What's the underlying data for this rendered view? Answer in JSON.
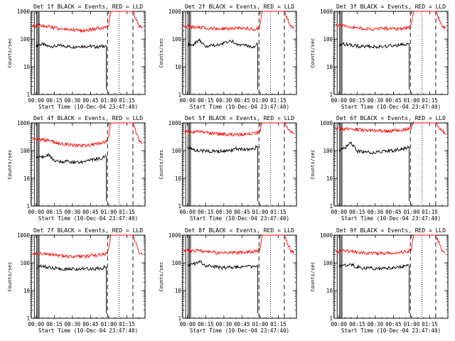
{
  "figure": {
    "xlabel": "Start Time (10-Dec-04 23:47:40)",
    "ylabel": "Counts/sec",
    "x_tick_labels": [
      "00:00",
      "00:15",
      "00:30",
      "00:45",
      "01:00",
      "01:15"
    ],
    "y_tick_labels": [
      "1",
      "10",
      "100",
      "1000"
    ],
    "colors": {
      "events": "#000000",
      "lld": "#ff0000",
      "axes": "#000000",
      "background": "#ffffff"
    }
  },
  "chart_data": [
    {
      "type": "line",
      "title": "Det 1f BLACK = Events, RED = LLD",
      "xlabel": "Start Time (10-Dec-04 23:47:40)",
      "ylabel": "Counts/sec",
      "y_scale": "log",
      "ylim": [
        1,
        1000
      ],
      "xlim": [
        -4,
        90
      ],
      "x_unit": "minutes after 00:00",
      "series": [
        {
          "name": "Events",
          "color": "#000000",
          "x": [
            -3,
            0,
            5,
            10,
            15,
            20,
            25,
            30,
            35,
            40,
            45,
            50,
            55,
            58,
            60
          ],
          "y": [
            null,
            60,
            65,
            55,
            55,
            58,
            55,
            52,
            55,
            55,
            55,
            52,
            55,
            60,
            null
          ]
        },
        {
          "name": "LLD",
          "color": "#ff0000",
          "x": [
            -3,
            0,
            5,
            10,
            15,
            20,
            25,
            30,
            35,
            40,
            45,
            50,
            55,
            58,
            60,
            61,
            62,
            65,
            70,
            75,
            80,
            85,
            88
          ],
          "y": [
            290,
            300,
            300,
            290,
            250,
            240,
            220,
            210,
            200,
            200,
            220,
            240,
            250,
            270,
            330,
            700,
            1000,
            1000,
            1000,
            1000,
            1000,
            300,
            250
          ]
        }
      ]
    },
    {
      "type": "line",
      "title": "Det 2f BLACK = Events, RED = LLD",
      "xlabel": "Start Time (10-Dec-04 23:47:40)",
      "ylabel": "Counts/sec",
      "y_scale": "log",
      "ylim": [
        1,
        1000
      ],
      "xlim": [
        -4,
        90
      ],
      "x_unit": "minutes after 00:00",
      "series": [
        {
          "name": "Events",
          "color": "#000000",
          "x": [
            -3,
            0,
            5,
            10,
            15,
            20,
            25,
            30,
            35,
            40,
            45,
            50,
            55,
            58,
            60
          ],
          "y": [
            null,
            60,
            65,
            90,
            55,
            58,
            60,
            70,
            90,
            70,
            60,
            55,
            55,
            70,
            null
          ]
        },
        {
          "name": "LLD",
          "color": "#ff0000",
          "x": [
            -3,
            0,
            5,
            10,
            15,
            20,
            25,
            30,
            35,
            40,
            45,
            50,
            55,
            58,
            60,
            61,
            62,
            65,
            70,
            75,
            80,
            85,
            88
          ],
          "y": [
            300,
            280,
            270,
            260,
            250,
            240,
            230,
            230,
            240,
            250,
            250,
            240,
            230,
            240,
            330,
            700,
            1000,
            1000,
            1000,
            1000,
            1000,
            300,
            230
          ]
        }
      ]
    },
    {
      "type": "line",
      "title": "Det 3f BLACK = Events, RED = LLD",
      "xlabel": "Start Time (10-Dec-04 23:47:40)",
      "ylabel": "Counts/sec",
      "y_scale": "log",
      "ylim": [
        1,
        1000
      ],
      "xlim": [
        -4,
        90
      ],
      "x_unit": "minutes after 00:00",
      "series": [
        {
          "name": "Events",
          "color": "#000000",
          "x": [
            -3,
            0,
            5,
            10,
            15,
            20,
            25,
            30,
            35,
            40,
            45,
            50,
            55,
            58,
            60
          ],
          "y": [
            null,
            60,
            65,
            60,
            55,
            55,
            55,
            52,
            55,
            55,
            58,
            60,
            65,
            70,
            null
          ]
        },
        {
          "name": "LLD",
          "color": "#ff0000",
          "x": [
            -3,
            0,
            5,
            10,
            15,
            20,
            25,
            30,
            35,
            40,
            45,
            50,
            55,
            58,
            60,
            61,
            62,
            65,
            70,
            75,
            80,
            85,
            88
          ],
          "y": [
            320,
            310,
            300,
            280,
            250,
            240,
            230,
            230,
            240,
            240,
            240,
            230,
            240,
            260,
            340,
            700,
            1000,
            1000,
            1000,
            1000,
            1000,
            300,
            250
          ]
        }
      ]
    },
    {
      "type": "line",
      "title": "Det 4f BLACK = Events, RED = LLD",
      "xlabel": "Start Time (10-Dec-04 23:47:40)",
      "ylabel": "Counts/sec",
      "y_scale": "log",
      "ylim": [
        1,
        1000
      ],
      "xlim": [
        -4,
        90
      ],
      "x_unit": "minutes after 00:00",
      "series": [
        {
          "name": "Events",
          "color": "#000000",
          "x": [
            -3,
            0,
            5,
            10,
            15,
            20,
            25,
            30,
            35,
            40,
            45,
            50,
            55,
            58,
            60
          ],
          "y": [
            null,
            55,
            60,
            70,
            45,
            40,
            40,
            38,
            38,
            40,
            45,
            50,
            55,
            65,
            null
          ]
        },
        {
          "name": "LLD",
          "color": "#ff0000",
          "x": [
            -3,
            0,
            5,
            10,
            15,
            20,
            25,
            30,
            35,
            40,
            45,
            50,
            55,
            58,
            60,
            61,
            62,
            65,
            70,
            75,
            80,
            85,
            88
          ],
          "y": [
            250,
            260,
            250,
            230,
            200,
            180,
            170,
            160,
            150,
            150,
            160,
            170,
            190,
            220,
            300,
            700,
            1000,
            1000,
            1000,
            1000,
            1000,
            250,
            180
          ]
        }
      ]
    },
    {
      "type": "line",
      "title": "Det 5f BLACK = Events, RED = LLD",
      "xlabel": "Start Time (10-Dec-04 23:47:40)",
      "ylabel": "Counts/sec",
      "y_scale": "log",
      "ylim": [
        1,
        1000
      ],
      "xlim": [
        -4,
        90
      ],
      "x_unit": "minutes after 00:00",
      "series": [
        {
          "name": "Events",
          "color": "#000000",
          "x": [
            -3,
            0,
            5,
            10,
            15,
            20,
            25,
            30,
            35,
            40,
            45,
            50,
            55,
            58,
            60
          ],
          "y": [
            null,
            130,
            110,
            100,
            95,
            95,
            95,
            95,
            100,
            120,
            110,
            110,
            120,
            140,
            null
          ]
        },
        {
          "name": "LLD",
          "color": "#ff0000",
          "x": [
            -3,
            0,
            5,
            10,
            15,
            20,
            25,
            30,
            35,
            40,
            45,
            50,
            55,
            58,
            60,
            61,
            62,
            65,
            70,
            75,
            80,
            85,
            88
          ],
          "y": [
            480,
            480,
            480,
            470,
            440,
            420,
            400,
            390,
            380,
            380,
            390,
            400,
            420,
            450,
            500,
            800,
            1000,
            1000,
            1000,
            1000,
            1000,
            500,
            420
          ]
        }
      ]
    },
    {
      "type": "line",
      "title": "Det 6f BLACK = Events, RED = LLD",
      "xlabel": "Start Time (10-Dec-04 23:47:40)",
      "ylabel": "Counts/sec",
      "y_scale": "log",
      "ylim": [
        1,
        1000
      ],
      "xlim": [
        -4,
        90
      ],
      "x_unit": "minutes after 00:00",
      "series": [
        {
          "name": "Events",
          "color": "#000000",
          "x": [
            -3,
            0,
            5,
            10,
            15,
            20,
            25,
            30,
            35,
            40,
            45,
            50,
            55,
            58,
            60
          ],
          "y": [
            null,
            110,
            120,
            200,
            95,
            90,
            85,
            85,
            90,
            95,
            100,
            110,
            120,
            140,
            null
          ]
        },
        {
          "name": "LLD",
          "color": "#ff0000",
          "x": [
            -3,
            0,
            5,
            10,
            15,
            20,
            25,
            30,
            35,
            40,
            45,
            50,
            55,
            58,
            60,
            61,
            62,
            65,
            70,
            75,
            80,
            85,
            88
          ],
          "y": [
            620,
            620,
            610,
            600,
            580,
            560,
            540,
            520,
            510,
            510,
            520,
            540,
            560,
            600,
            660,
            900,
            1000,
            1000,
            1000,
            1000,
            1000,
            520,
            430
          ]
        }
      ]
    },
    {
      "type": "line",
      "title": "Det 7f BLACK = Events, RED = LLD",
      "xlabel": "Start Time (10-Dec-04 23:47:40)",
      "ylabel": "Counts/sec",
      "y_scale": "log",
      "ylim": [
        1,
        1000
      ],
      "xlim": [
        -4,
        90
      ],
      "x_unit": "minutes after 00:00",
      "series": [
        {
          "name": "Events",
          "color": "#000000",
          "x": [
            -3,
            0,
            5,
            10,
            15,
            20,
            25,
            30,
            35,
            40,
            45,
            50,
            55,
            58,
            60
          ],
          "y": [
            null,
            70,
            75,
            70,
            65,
            62,
            60,
            60,
            60,
            62,
            62,
            62,
            65,
            75,
            null
          ]
        },
        {
          "name": "LLD",
          "color": "#ff0000",
          "x": [
            -3,
            0,
            5,
            10,
            15,
            20,
            25,
            30,
            35,
            40,
            45,
            50,
            55,
            58,
            60,
            61,
            62,
            65,
            70,
            75,
            80,
            85,
            88
          ],
          "y": [
            200,
            210,
            220,
            210,
            190,
            180,
            170,
            170,
            170,
            170,
            180,
            190,
            200,
            220,
            300,
            650,
            1000,
            1000,
            1000,
            1000,
            1000,
            250,
            200
          ]
        }
      ]
    },
    {
      "type": "line",
      "title": "Det 8f BLACK = Events, RED = LLD",
      "xlabel": "Start Time (10-Dec-04 23:47:40)",
      "ylabel": "Counts/sec",
      "y_scale": "log",
      "ylim": [
        1,
        1000
      ],
      "xlim": [
        -4,
        90
      ],
      "x_unit": "minutes after 00:00",
      "series": [
        {
          "name": "Events",
          "color": "#000000",
          "x": [
            -3,
            0,
            5,
            10,
            15,
            20,
            25,
            30,
            35,
            40,
            45,
            50,
            55,
            58,
            60
          ],
          "y": [
            null,
            80,
            90,
            110,
            80,
            75,
            70,
            68,
            68,
            70,
            70,
            72,
            75,
            85,
            null
          ]
        },
        {
          "name": "LLD",
          "color": "#ff0000",
          "x": [
            -3,
            0,
            5,
            10,
            15,
            20,
            25,
            30,
            35,
            40,
            45,
            50,
            55,
            58,
            60,
            61,
            62,
            65,
            70,
            75,
            80,
            85,
            88
          ],
          "y": [
            260,
            270,
            280,
            270,
            250,
            240,
            230,
            230,
            230,
            230,
            240,
            250,
            260,
            280,
            330,
            700,
            1000,
            1000,
            1000,
            1000,
            1000,
            280,
            230
          ]
        }
      ]
    },
    {
      "type": "line",
      "title": "Det 9f BLACK = Events, RED = LLD",
      "xlabel": "Start Time (10-Dec-04 23:47:40)",
      "ylabel": "Counts/sec",
      "y_scale": "log",
      "ylim": [
        1,
        1000
      ],
      "xlim": [
        -4,
        90
      ],
      "x_unit": "minutes after 00:00",
      "series": [
        {
          "name": "Events",
          "color": "#000000",
          "x": [
            -3,
            0,
            5,
            10,
            15,
            20,
            25,
            30,
            35,
            40,
            45,
            50,
            55,
            58,
            60
          ],
          "y": [
            null,
            75,
            80,
            90,
            70,
            65,
            65,
            62,
            62,
            65,
            68,
            70,
            75,
            85,
            null
          ]
        },
        {
          "name": "LLD",
          "color": "#ff0000",
          "x": [
            -3,
            0,
            5,
            10,
            15,
            20,
            25,
            30,
            35,
            40,
            45,
            50,
            55,
            58,
            60,
            61,
            62,
            65,
            70,
            75,
            80,
            85,
            88
          ],
          "y": [
            250,
            260,
            270,
            260,
            240,
            230,
            220,
            220,
            220,
            220,
            230,
            240,
            250,
            270,
            320,
            700,
            1000,
            1000,
            1000,
            1000,
            1000,
            280,
            220
          ]
        }
      ]
    }
  ]
}
